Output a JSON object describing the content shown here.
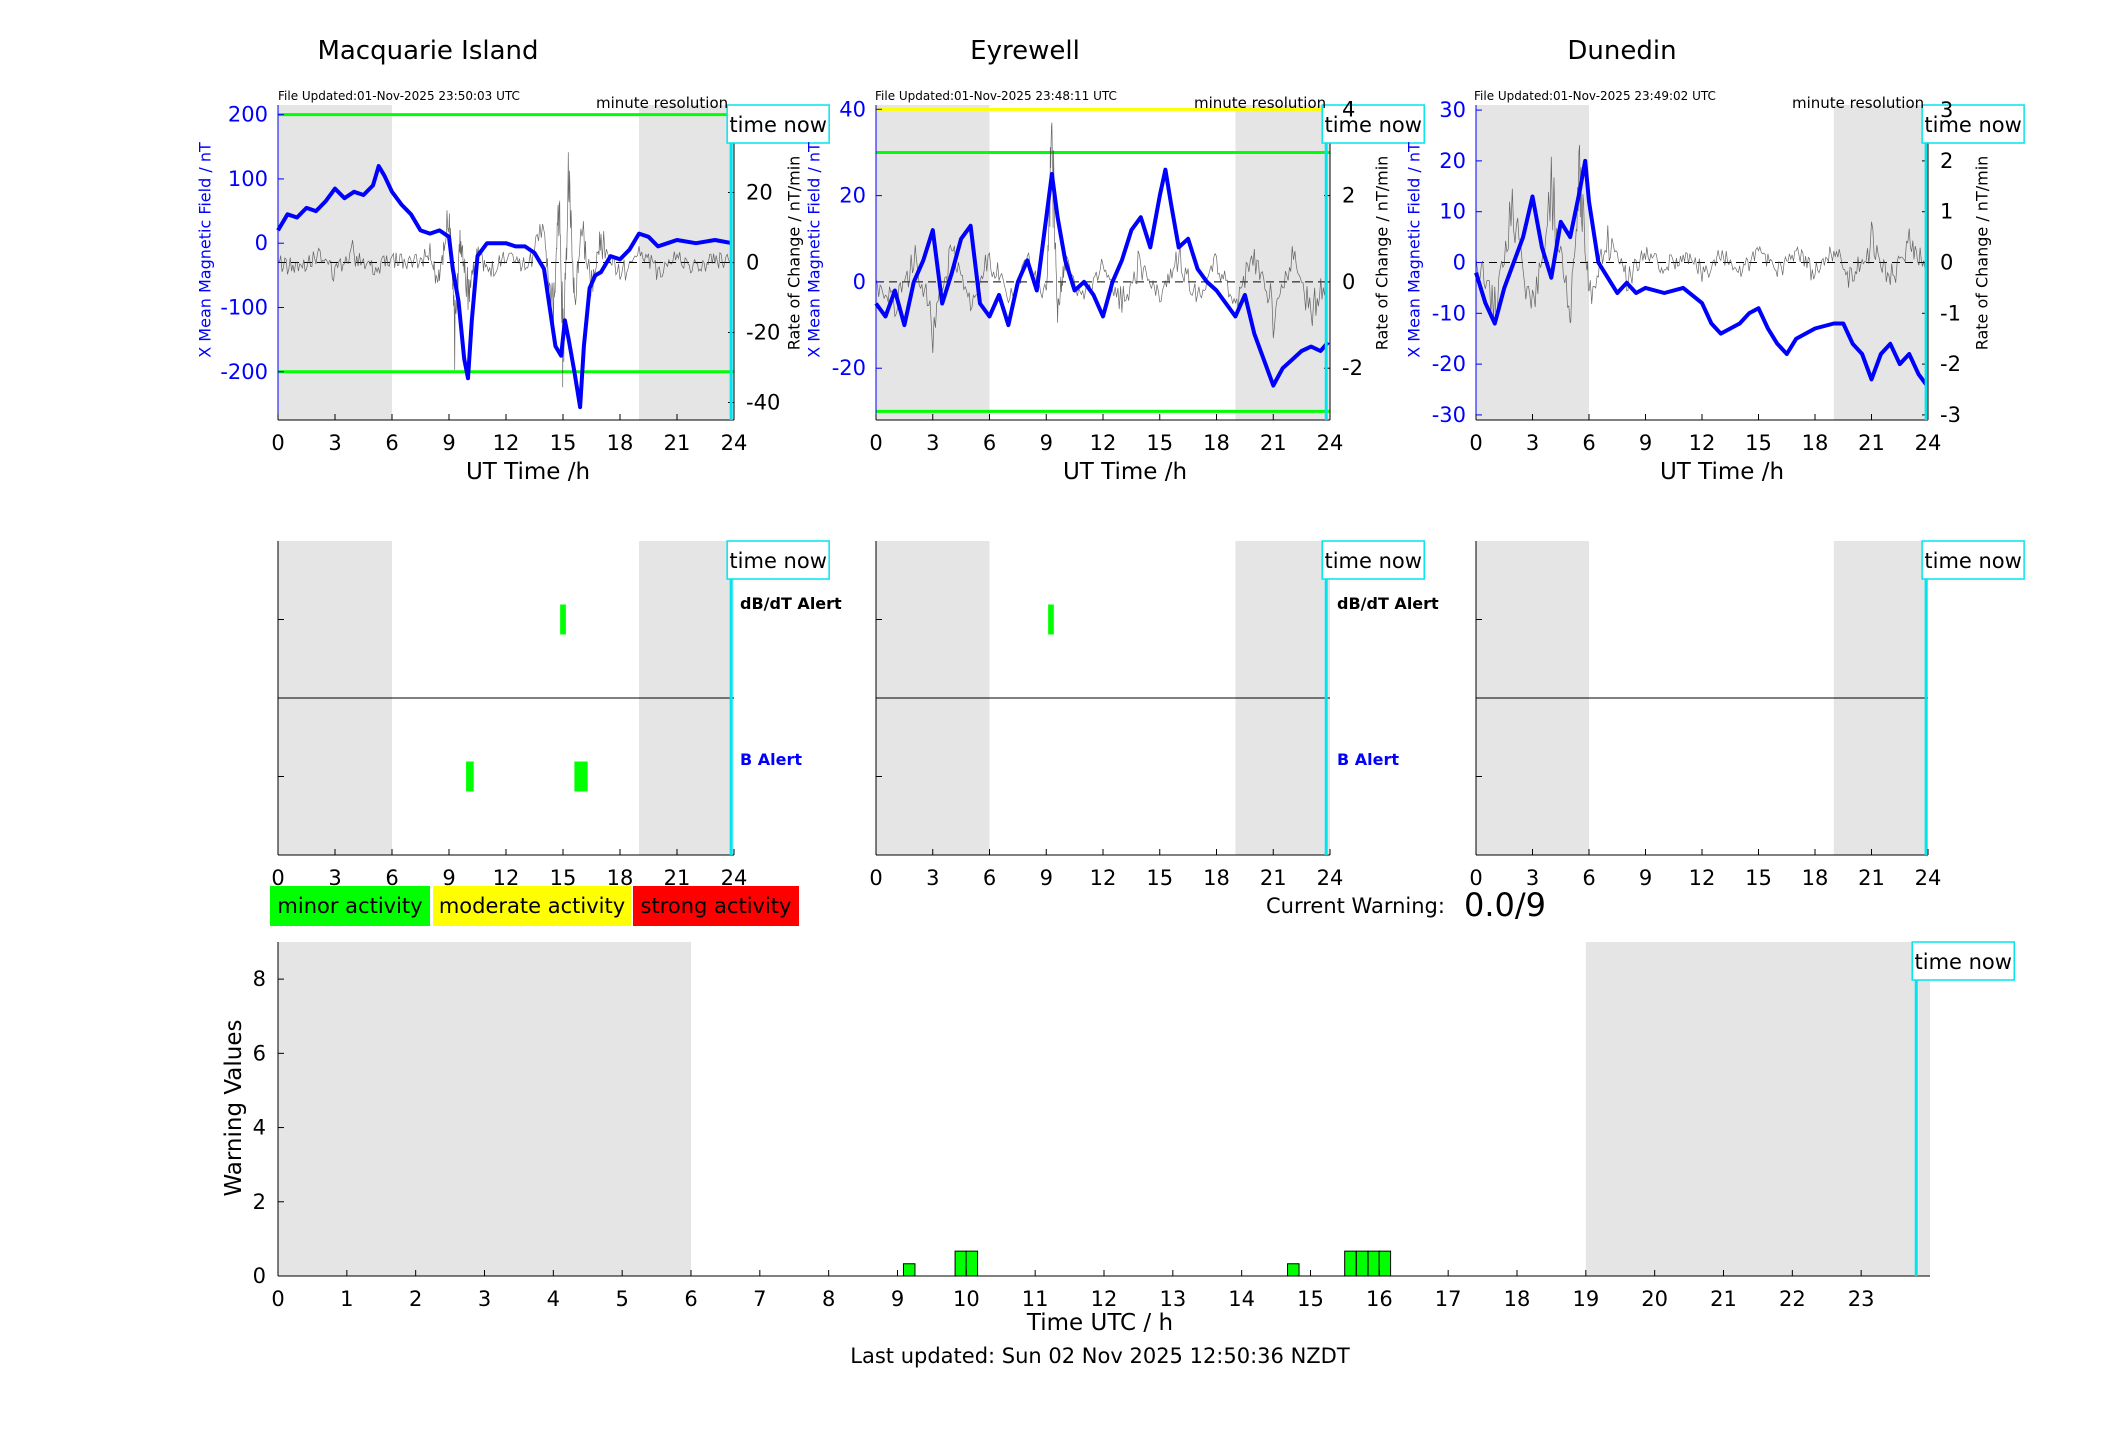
{
  "colors": {
    "shade": "#e5e5e5",
    "field_line": "#0000ff",
    "rate_line": "#444444",
    "threshold_green": "#00ff00",
    "threshold_yellow": "#ffff00",
    "time_now": "#00e5ee",
    "minor": "#00ff00",
    "moderate": "#ffff00",
    "strong": "#ff0000",
    "axis_blue": "#0000ff"
  },
  "common": {
    "xlabel": "UT Time /h",
    "x_ticks": [
      "0",
      "3",
      "6",
      "9",
      "12",
      "15",
      "18",
      "21",
      "24"
    ],
    "time_now_label": "time now",
    "resolution_label": "minute resolution",
    "y_left_label": "X Mean Magnetic Field / nT",
    "y_right_label": "Rate of Change / nT/min",
    "alert_db_label": "dB/dT Alert",
    "alert_b_label": "B Alert"
  },
  "legend": {
    "minor": "minor activity",
    "moderate": "moderate activity",
    "strong": "strong activity"
  },
  "current_warning": {
    "label": "Current Warning:",
    "value": "0.0/9"
  },
  "footer": {
    "last_updated": "Last updated: Sun 02 Nov 2025 12:50:36 NZDT"
  },
  "chart_data": [
    {
      "type": "line",
      "title": "Macquarie Island",
      "file_updated": "File Updated:01-Nov-2025 23:50:03 UTC",
      "xlabel": "UT Time /h",
      "ylabel": "X Mean Magnetic Field / nT",
      "y2label": "Rate of Change / nT/min",
      "xlim": [
        0,
        24
      ],
      "ylim": [
        -275,
        215
      ],
      "y_ticks": [
        "200",
        "100",
        "0",
        "-100",
        "-200"
      ],
      "y_tick_values": [
        200,
        100,
        0,
        -100,
        -200
      ],
      "y2lim": [
        -45,
        45
      ],
      "y2_ticks": [
        "20",
        "0",
        "-20",
        "-40"
      ],
      "y2_tick_values": [
        20,
        0,
        -20,
        -40
      ],
      "shaded_hours": [
        [
          0,
          6
        ],
        [
          19,
          24
        ]
      ],
      "time_now_hour": 23.85,
      "thresholds": [
        {
          "value": 200,
          "color": "green"
        },
        {
          "value": -200,
          "color": "green"
        }
      ],
      "field_series": {
        "name": "X Mean Magnetic Field",
        "x": [
          0,
          0.5,
          1,
          1.5,
          2,
          2.5,
          3,
          3.5,
          4,
          4.5,
          5,
          5.3,
          5.6,
          6,
          6.5,
          7,
          7.5,
          8,
          8.5,
          9,
          9.2,
          9.5,
          9.8,
          10,
          10.2,
          10.5,
          11,
          11.5,
          12,
          12.5,
          13,
          13.5,
          14,
          14.3,
          14.6,
          14.9,
          15.1,
          15.3,
          15.6,
          15.9,
          16.1,
          16.4,
          16.7,
          17,
          17.5,
          18,
          18.5,
          19,
          19.5,
          20,
          20.5,
          21,
          22,
          23,
          23.9
        ],
        "y": [
          20,
          45,
          40,
          55,
          50,
          65,
          85,
          70,
          80,
          75,
          90,
          120,
          105,
          80,
          60,
          45,
          20,
          15,
          20,
          10,
          -40,
          -90,
          -180,
          -210,
          -120,
          -20,
          0,
          0,
          0,
          -5,
          -5,
          -15,
          -40,
          -100,
          -160,
          -175,
          -120,
          -150,
          -200,
          -255,
          -160,
          -70,
          -50,
          -45,
          -20,
          -25,
          -10,
          15,
          10,
          -5,
          0,
          5,
          0,
          5,
          0
        ]
      },
      "rate_series": {
        "name": "Rate of Change",
        "x": [
          0,
          1,
          2,
          3,
          4,
          5,
          6,
          7,
          8,
          8.5,
          9,
          9.3,
          9.6,
          10,
          10.5,
          11,
          12,
          13,
          14,
          14.5,
          14.8,
          15,
          15.3,
          15.6,
          16,
          16.5,
          17,
          18,
          19,
          20,
          21,
          22,
          23,
          23.9
        ],
        "y": [
          0,
          -2,
          3,
          -3,
          4,
          -2,
          2,
          -1,
          3,
          -8,
          20,
          -25,
          10,
          -12,
          5,
          -3,
          1,
          -2,
          10,
          -20,
          25,
          -35,
          30,
          -15,
          12,
          -10,
          8,
          -5,
          4,
          -3,
          2,
          -2,
          1,
          0
        ]
      },
      "alerts": {
        "db_dt": [
          {
            "start": 14.85,
            "end": 15.15
          }
        ],
        "b": [
          {
            "start": 9.9,
            "end": 10.3
          },
          {
            "start": 15.6,
            "end": 16.3
          }
        ]
      }
    },
    {
      "type": "line",
      "title": "Eyrewell",
      "file_updated": "File Updated:01-Nov-2025 23:48:11 UTC",
      "xlabel": "UT Time /h",
      "ylabel": "X Mean Magnetic Field / nT",
      "y2label": "Rate of Change / nT/min",
      "xlim": [
        0,
        24
      ],
      "ylim": [
        -32,
        41
      ],
      "y_ticks": [
        "40",
        "20",
        "0",
        "-20"
      ],
      "y_tick_values": [
        40,
        20,
        0,
        -20
      ],
      "y2lim": [
        -3.2,
        4.1
      ],
      "y2_ticks": [
        "4",
        "2",
        "0",
        "-2"
      ],
      "y2_tick_values": [
        4,
        2,
        0,
        -2
      ],
      "shaded_hours": [
        [
          0,
          6
        ],
        [
          19,
          24
        ]
      ],
      "time_now_hour": 23.8,
      "thresholds": [
        {
          "value": 40,
          "color": "yellow"
        },
        {
          "value": 30,
          "color": "green"
        },
        {
          "value": -30,
          "color": "green"
        }
      ],
      "field_series": {
        "name": "X Mean Magnetic Field",
        "x": [
          0,
          0.5,
          1,
          1.5,
          2,
          2.5,
          3,
          3.5,
          4,
          4.5,
          5,
          5.5,
          6,
          6.5,
          7,
          7.5,
          8,
          8.5,
          9,
          9.3,
          9.6,
          10,
          10.5,
          11,
          11.5,
          12,
          12.5,
          13,
          13.5,
          14,
          14.5,
          15,
          15.3,
          15.6,
          16,
          16.5,
          17,
          17.5,
          18,
          18.5,
          19,
          19.5,
          20,
          20.5,
          21,
          21.5,
          22,
          22.5,
          23,
          23.5,
          23.9
        ],
        "y": [
          -5,
          -8,
          -2,
          -10,
          0,
          5,
          12,
          -5,
          2,
          10,
          13,
          -5,
          -8,
          -3,
          -10,
          0,
          5,
          -2,
          15,
          25,
          15,
          5,
          -2,
          0,
          -3,
          -8,
          0,
          5,
          12,
          15,
          8,
          20,
          26,
          18,
          8,
          10,
          3,
          0,
          -2,
          -5,
          -8,
          -3,
          -12,
          -18,
          -24,
          -20,
          -18,
          -16,
          -15,
          -16,
          -14
        ]
      },
      "rate_series": {
        "name": "Rate of Change",
        "x": [
          0,
          1,
          2,
          3,
          4,
          5,
          6,
          7,
          8,
          9,
          9.3,
          9.6,
          10,
          11,
          12,
          13,
          14,
          15,
          16,
          17,
          18,
          19,
          20,
          21,
          22,
          23,
          23.9
        ],
        "y": [
          0,
          -0.8,
          0.7,
          -1.2,
          1.0,
          -0.9,
          0.8,
          -0.5,
          0.6,
          -0.4,
          3.5,
          -0.8,
          0.7,
          -0.6,
          0.5,
          -0.7,
          0.6,
          -0.5,
          0.8,
          -0.6,
          0.7,
          -0.8,
          1.0,
          -0.9,
          0.7,
          -0.8,
          0
        ]
      },
      "alerts": {
        "db_dt": [
          {
            "start": 9.1,
            "end": 9.4
          }
        ],
        "b": []
      }
    },
    {
      "type": "line",
      "title": "Dunedin",
      "file_updated": "File Updated:01-Nov-2025 23:49:02 UTC",
      "xlabel": "UT Time /h",
      "ylabel": "X Mean Magnetic Field / nT",
      "y2label": "Rate of Change / nT/min",
      "xlim": [
        0,
        24
      ],
      "ylim": [
        -31,
        31
      ],
      "y_ticks": [
        "30",
        "20",
        "10",
        "0",
        "-10",
        "-20",
        "-30"
      ],
      "y_tick_values": [
        30,
        20,
        10,
        0,
        -10,
        -20,
        -30
      ],
      "y2lim": [
        -3.1,
        3.1
      ],
      "y2_ticks": [
        "3",
        "2",
        "1",
        "0",
        "-1",
        "-2",
        "-3"
      ],
      "y2_tick_values": [
        3,
        2,
        1,
        0,
        -1,
        -2,
        -3
      ],
      "shaded_hours": [
        [
          0,
          6
        ],
        [
          19,
          24
        ]
      ],
      "time_now_hour": 23.9,
      "thresholds": [],
      "field_series": {
        "name": "X Mean Magnetic Field",
        "x": [
          0,
          0.5,
          1,
          1.5,
          2,
          2.5,
          3,
          3.5,
          4,
          4.5,
          5,
          5.5,
          5.8,
          6,
          6.5,
          7,
          7.5,
          8,
          8.5,
          9,
          10,
          11,
          12,
          12.5,
          13,
          14,
          14.5,
          15,
          15.5,
          16,
          16.5,
          17,
          17.5,
          18,
          19,
          19.5,
          20,
          20.5,
          21,
          21.5,
          22,
          22.5,
          23,
          23.5,
          23.9
        ],
        "y": [
          -2,
          -8,
          -12,
          -5,
          0,
          5,
          13,
          3,
          -3,
          8,
          5,
          14,
          20,
          12,
          0,
          -3,
          -6,
          -4,
          -6,
          -5,
          -6,
          -5,
          -8,
          -12,
          -14,
          -12,
          -10,
          -9,
          -13,
          -16,
          -18,
          -15,
          -14,
          -13,
          -12,
          -12,
          -16,
          -18,
          -23,
          -18,
          -16,
          -20,
          -18,
          -22,
          -24
        ]
      },
      "rate_series": {
        "name": "Rate of Change",
        "x": [
          0,
          1,
          2,
          3,
          4,
          5,
          5.5,
          6,
          7,
          8,
          9,
          10,
          11,
          12,
          13,
          14,
          15,
          16,
          17,
          18,
          19,
          20,
          21,
          22,
          23,
          23.9
        ],
        "y": [
          0,
          -1.0,
          1.3,
          -1.5,
          1.8,
          -1.2,
          2.0,
          -0.8,
          0.6,
          -0.4,
          0.3,
          -0.2,
          0.3,
          -0.3,
          0.2,
          -0.3,
          0.3,
          -0.2,
          0.3,
          -0.3,
          0.4,
          -0.5,
          0.6,
          -0.5,
          0.5,
          0
        ]
      },
      "alerts": {
        "db_dt": [],
        "b": []
      }
    },
    {
      "type": "bar",
      "title": "",
      "xlabel": "Time UTC / h",
      "ylabel": "Warning Values",
      "xlim": [
        0,
        24
      ],
      "ylim": [
        0,
        9
      ],
      "x_ticks": [
        "0",
        "1",
        "2",
        "3",
        "4",
        "5",
        "6",
        "7",
        "8",
        "9",
        "10",
        "11",
        "12",
        "13",
        "14",
        "15",
        "16",
        "17",
        "18",
        "19",
        "20",
        "21",
        "22",
        "23"
      ],
      "y_ticks": [
        "8",
        "6",
        "4",
        "2",
        "0"
      ],
      "y_tick_values": [
        8,
        6,
        4,
        2,
        0
      ],
      "shaded_hours": [
        [
          0,
          6
        ],
        [
          19,
          24
        ]
      ],
      "time_now_hour": 23.8,
      "bar_width_hours": 0.167,
      "bars": [
        {
          "x": 9.17,
          "value": 0.33
        },
        {
          "x": 9.92,
          "value": 0.67
        },
        {
          "x": 10.08,
          "value": 0.67
        },
        {
          "x": 14.75,
          "value": 0.33
        },
        {
          "x": 15.58,
          "value": 0.67
        },
        {
          "x": 15.75,
          "value": 0.67
        },
        {
          "x": 15.92,
          "value": 0.67
        },
        {
          "x": 16.08,
          "value": 0.67
        }
      ]
    }
  ]
}
